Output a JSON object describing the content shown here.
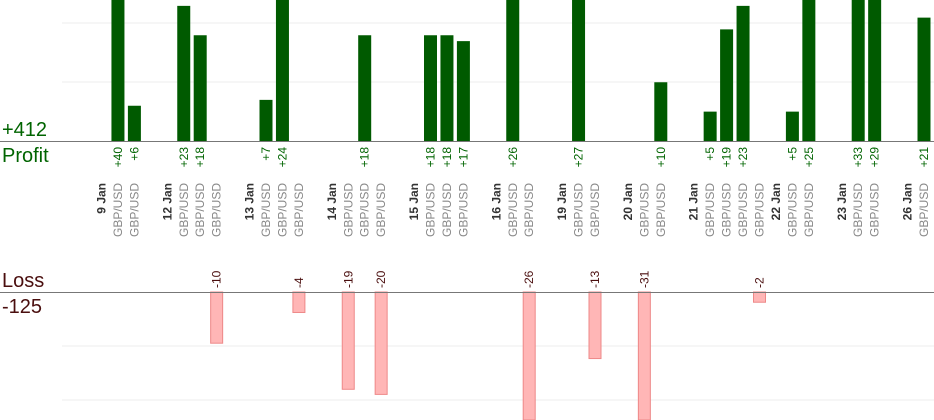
{
  "summary": {
    "profit_total": "+412",
    "profit_label": "Profit",
    "loss_label": "Loss",
    "loss_total": "-125"
  },
  "colors": {
    "profit_bar": "#005a00",
    "profit_text": "#006400",
    "loss_bar_fill": "#ffb6b6",
    "loss_bar_stroke": "#ee8888",
    "loss_text": "#4a0e0e",
    "axis": "#777777",
    "grid": "#eeeeee",
    "date_text": "#333333",
    "pair_text": "#888888"
  },
  "chart_data": {
    "type": "bar",
    "profit_scale_max": 24,
    "loss_scale_max": 25,
    "dates": [
      {
        "label": "9 Jan",
        "slot": 0
      },
      {
        "label": "12 Jan",
        "slot": 4
      },
      {
        "label": "13 Jan",
        "slot": 9
      },
      {
        "label": "14 Jan",
        "slot": 14
      },
      {
        "label": "15 Jan",
        "slot": 19
      },
      {
        "label": "16 Jan",
        "slot": 24
      },
      {
        "label": "19 Jan",
        "slot": 28
      },
      {
        "label": "20 Jan",
        "slot": 32
      },
      {
        "label": "21 Jan",
        "slot": 36
      },
      {
        "label": "22 Jan",
        "slot": 41
      },
      {
        "label": "23 Jan",
        "slot": 45
      },
      {
        "label": "26 Jan",
        "slot": 49
      }
    ],
    "trades": [
      {
        "slot": 1,
        "pair": "GBP/USD",
        "value": 40,
        "label": "+40"
      },
      {
        "slot": 2,
        "pair": "GBP/USD",
        "value": 6,
        "label": "+6"
      },
      {
        "slot": 5,
        "pair": "GBP/USD",
        "value": 23,
        "label": "+23"
      },
      {
        "slot": 6,
        "pair": "GBP/USD",
        "value": 18,
        "label": "+18"
      },
      {
        "slot": 7,
        "pair": "GBP/USD",
        "value": -10,
        "label": "-10"
      },
      {
        "slot": 10,
        "pair": "GBP/USD",
        "value": 7,
        "label": "+7"
      },
      {
        "slot": 11,
        "pair": "GBP/USD",
        "value": 24,
        "label": "+24"
      },
      {
        "slot": 12,
        "pair": "GBP/USD",
        "value": -4,
        "label": "-4"
      },
      {
        "slot": 15,
        "pair": "GBP/USD",
        "value": -19,
        "label": "-19"
      },
      {
        "slot": 16,
        "pair": "GBP/USD",
        "value": 18,
        "label": "+18"
      },
      {
        "slot": 17,
        "pair": "GBP/USD",
        "value": -20,
        "label": "-20"
      },
      {
        "slot": 20,
        "pair": "GBP/USD",
        "value": 18,
        "label": "+18"
      },
      {
        "slot": 21,
        "pair": "GBP/USD",
        "value": 18,
        "label": "+18"
      },
      {
        "slot": 22,
        "pair": "GBP/USD",
        "value": 17,
        "label": "+17"
      },
      {
        "slot": 25,
        "pair": "GBP/USD",
        "value": 26,
        "label": "+26"
      },
      {
        "slot": 26,
        "pair": "GBP/USD",
        "value": -26,
        "label": "-26"
      },
      {
        "slot": 29,
        "pair": "GBP/USD",
        "value": 27,
        "label": "+27"
      },
      {
        "slot": 30,
        "pair": "GBP/USD",
        "value": -13,
        "label": "-13"
      },
      {
        "slot": 33,
        "pair": "GBP/USD",
        "value": -31,
        "label": "-31"
      },
      {
        "slot": 34,
        "pair": "GBP/USD",
        "value": 10,
        "label": "+10"
      },
      {
        "slot": 37,
        "pair": "GBP/USD",
        "value": 5,
        "label": "+5"
      },
      {
        "slot": 38,
        "pair": "GBP/USD",
        "value": 19,
        "label": "+19"
      },
      {
        "slot": 39,
        "pair": "GBP/USD",
        "value": 23,
        "label": "+23"
      },
      {
        "slot": 40,
        "pair": "GBP/USD",
        "value": -2,
        "label": "-2"
      },
      {
        "slot": 42,
        "pair": "GBP/USD",
        "value": 5,
        "label": "+5"
      },
      {
        "slot": 43,
        "pair": "GBP/USD",
        "value": 25,
        "label": "+25"
      },
      {
        "slot": 46,
        "pair": "GBP/USD",
        "value": 33,
        "label": "+33"
      },
      {
        "slot": 47,
        "pair": "GBP/USD",
        "value": 29,
        "label": "+29"
      },
      {
        "slot": 50,
        "pair": "GBP/USD",
        "value": 21,
        "label": "+21"
      }
    ]
  }
}
